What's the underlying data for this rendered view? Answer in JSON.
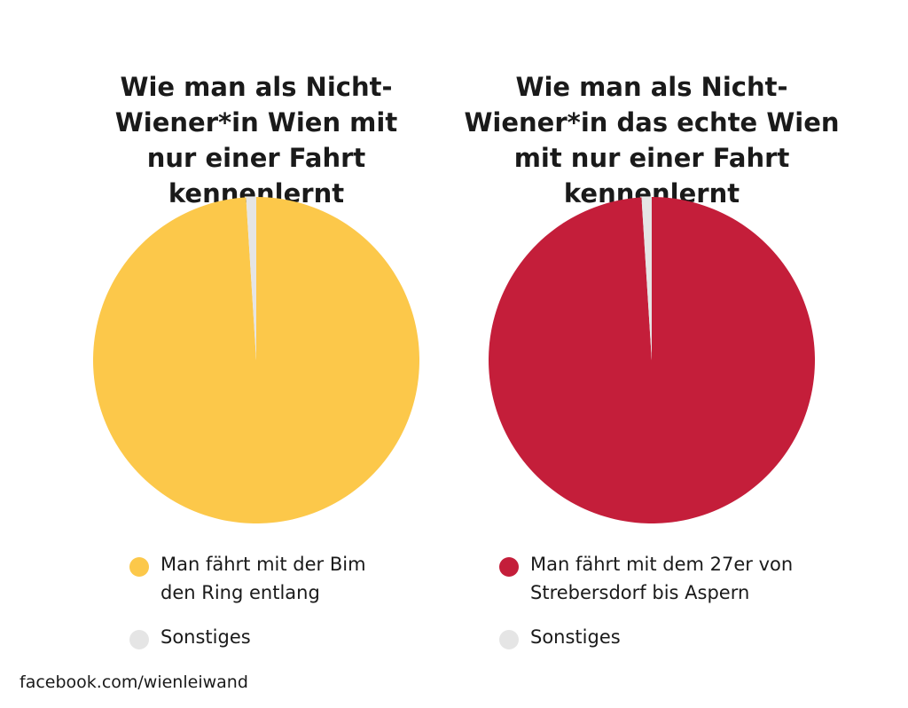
{
  "chart_data": [
    {
      "type": "pie",
      "title": "Wie man als Nicht-Wiener*in Wien mit nur einer Fahrt kennenlernt",
      "slices": [
        {
          "label": "Man fährt mit der Bim den Ring entlang",
          "value": 99,
          "color": "#FCC84A"
        },
        {
          "label": "Sonstiges",
          "value": 1,
          "color": "#E5E5E5"
        }
      ],
      "legend": "bottom"
    },
    {
      "type": "pie",
      "title": "Wie man als Nicht-Wiener*in das echte Wien mit nur einer Fahrt kennenlernt",
      "slices": [
        {
          "label": "Man fährt mit dem 27er von Strebersdorf bis Aspern",
          "value": 99,
          "color": "#C41E3A"
        },
        {
          "label": "Sonstiges",
          "value": 1,
          "color": "#E5E5E5"
        }
      ],
      "legend": "bottom"
    }
  ],
  "footer": "facebook.com/wienleiwand"
}
